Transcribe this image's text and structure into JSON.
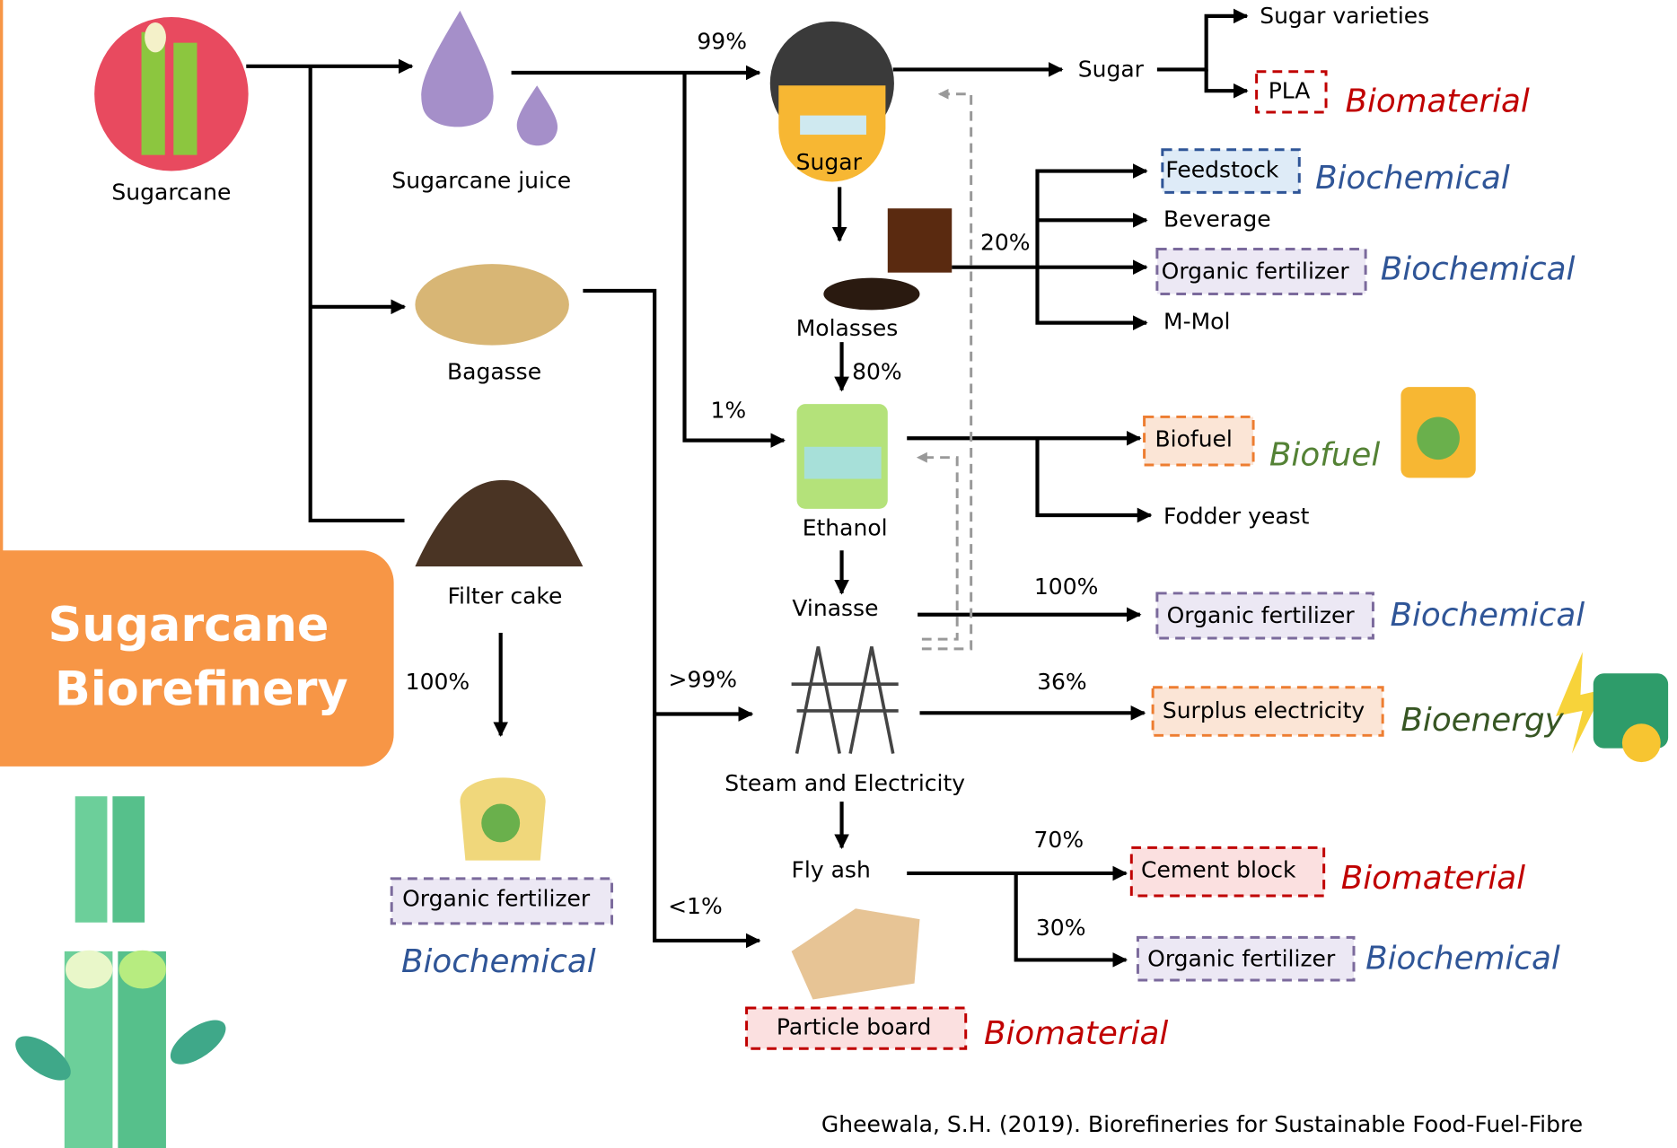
{
  "title": [
    "Sugarcane",
    "Biorefinery"
  ],
  "nodes": [
    "Sugarcane",
    "Sugarcane juice",
    "Bagasse",
    "Filter cake",
    "Sugar",
    "Molasses",
    "Ethanol",
    "Vinasse",
    "Steam and Electricity",
    "Fly ash"
  ],
  "products": [
    "Sugar",
    "Sugar varieties",
    "PLA",
    "Feedstock",
    "Beverage",
    "Organic fertilizer",
    "M-Mol",
    "Biofuel",
    "Fodder yeast",
    "Organic fertilizer",
    "Surplus electricity",
    "Cement block",
    "Organic fertilizer",
    "Particle board",
    "Organic fertilizer"
  ],
  "tags": [
    "Biomaterial",
    "Biochemical",
    "Biochemical",
    "Biofuel",
    "Biochemical",
    "Bioenergy",
    "Biomaterial",
    "Biochemical",
    "Biomaterial",
    "Biochemical"
  ],
  "shares": [
    "99%",
    "1%",
    "20%",
    "80%",
    "100%",
    ">99%",
    "<1%",
    "36%",
    "70%",
    "30%",
    "100%"
  ],
  "citation": "Gheewala, S.H. (2019). Biorefineries for Sustainable Food-Fuel-Fibre"
}
